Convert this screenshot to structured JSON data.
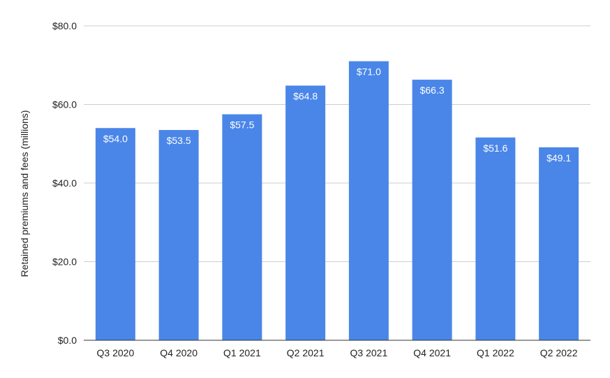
{
  "chart_data": {
    "type": "bar",
    "title": "",
    "xlabel": "",
    "ylabel": "Retained premiums and fees (millions)",
    "categories": [
      "Q3 2020",
      "Q4 2020",
      "Q1 2021",
      "Q2 2021",
      "Q3 2021",
      "Q4 2021",
      "Q1 2022",
      "Q2 2022"
    ],
    "values": [
      54.0,
      53.5,
      57.5,
      64.8,
      71.0,
      66.3,
      51.6,
      49.1
    ],
    "data_labels": [
      "$54.0",
      "$53.5",
      "$57.5",
      "$64.8",
      "$71.0",
      "$66.3",
      "$51.6",
      "$49.1"
    ],
    "ylim": [
      0,
      80
    ],
    "y_ticks": [
      0,
      20,
      40,
      60,
      80
    ],
    "y_tick_labels": [
      "$0.0",
      "$20.0",
      "$40.0",
      "$60.0",
      "$80.0"
    ],
    "grid": true,
    "legend": "none",
    "colors": {
      "bar": "#4a86e8",
      "grid": "#cccccc",
      "axis": "#333333",
      "text": "#222222",
      "data_label": "#ffffff"
    }
  }
}
